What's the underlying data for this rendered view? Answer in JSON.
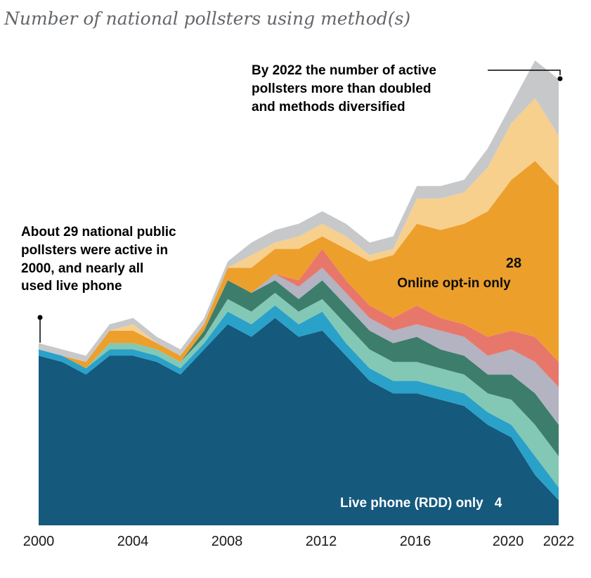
{
  "title": "Number of national pollsters using method(s)",
  "annotations": {
    "right": {
      "text": "By 2022 the number of active pollsters more than doubled and methods diversified",
      "lines": [
        "By 2022 the number of active",
        "pollsters more than doubled",
        "and methods diversified"
      ]
    },
    "left": {
      "text": "About 29 national public pollsters were active in 2000, and nearly all used live phone",
      "lines": [
        "About 29 national public",
        "pollsters were active in",
        "2000, and nearly all",
        "used live phone"
      ]
    }
  },
  "in_chart_labels": {
    "online_optin_value": "28",
    "online_optin_label": "Online opt-in only",
    "live_phone_label": "Live phone (RDD) only",
    "live_phone_value": "4"
  },
  "x_axis": {
    "ticks": [
      "2000",
      "2004",
      "2008",
      "2012",
      "2016",
      "2020",
      "2022"
    ]
  },
  "chart_data": {
    "type": "area",
    "stacked": true,
    "title": "Number of national pollsters using method(s)",
    "xlabel": "",
    "ylabel": "Number of national pollsters",
    "legend_position": "none",
    "grid": false,
    "ylim": [
      0,
      74
    ],
    "x": [
      2000,
      2001,
      2002,
      2003,
      2004,
      2005,
      2006,
      2007,
      2008,
      2009,
      2010,
      2011,
      2012,
      2013,
      2014,
      2015,
      2016,
      2017,
      2018,
      2019,
      2020,
      2021,
      2022
    ],
    "series": [
      {
        "name": "Live phone (RDD) only",
        "color": "#15597d",
        "values": [
          27,
          26,
          24,
          27,
          27,
          26,
          24,
          28,
          32,
          30,
          33,
          30,
          31,
          27,
          23,
          21,
          21,
          20,
          19,
          16,
          14,
          8,
          4
        ]
      },
      {
        "name": "unlabeled (light blue)",
        "color": "#2aa1c9",
        "values": [
          1,
          1,
          1,
          1,
          1,
          1,
          1,
          1,
          2,
          2,
          2,
          2,
          3,
          2,
          2,
          2,
          2,
          2,
          2,
          2,
          2,
          3,
          2
        ]
      },
      {
        "name": "unlabeled (seafoam)",
        "color": "#83c8b4",
        "values": [
          0,
          0,
          0,
          1,
          1,
          1,
          1,
          1,
          2,
          2,
          2,
          2,
          2,
          3,
          3,
          3,
          3,
          3,
          3,
          3,
          4,
          5,
          5
        ]
      },
      {
        "name": "unlabeled (dark green)",
        "color": "#3d7d6b",
        "values": [
          0,
          0,
          0,
          0,
          0,
          0,
          0,
          1,
          3,
          3,
          2,
          2,
          3,
          3,
          3,
          3,
          4,
          3,
          3,
          3,
          4,
          5,
          5
        ]
      },
      {
        "name": "unlabeled (gray lavender)",
        "color": "#b3b3c1",
        "values": [
          0,
          0,
          0,
          0,
          0,
          0,
          0,
          0,
          0,
          0,
          1,
          2,
          2,
          2,
          2,
          2,
          2,
          3,
          3,
          3,
          4,
          5,
          6
        ]
      },
      {
        "name": "unlabeled (salmon)",
        "color": "#e8776b",
        "values": [
          0,
          0,
          0,
          0,
          0,
          0,
          0,
          0,
          0,
          0,
          0,
          1,
          3,
          2,
          2,
          2,
          3,
          2,
          2,
          3,
          3,
          4,
          4
        ]
      },
      {
        "name": "Online opt-in only",
        "color": "#ed9f2c",
        "values": [
          0,
          0,
          1,
          2,
          2,
          1,
          1,
          1,
          2,
          4,
          4,
          5,
          2,
          5,
          7,
          10,
          13,
          14,
          16,
          20,
          24,
          28,
          28
        ]
      },
      {
        "name": "unlabeled (light orange)",
        "color": "#f7d08e",
        "values": [
          0,
          0,
          0,
          0,
          1,
          0,
          0,
          0,
          0,
          2,
          1,
          2,
          2,
          2,
          1,
          1,
          4,
          5,
          5,
          7,
          9,
          10,
          8
        ]
      },
      {
        "name": "unlabeled (top gray)",
        "color": "#c7c8ca",
        "values": [
          1,
          1,
          1,
          1,
          1,
          1,
          1,
          1,
          1,
          2,
          2,
          2,
          2,
          2,
          2,
          2,
          2,
          2,
          2,
          3,
          3,
          6,
          9
        ]
      }
    ],
    "annotated_points": [
      {
        "x": 2000,
        "total": 29,
        "note": "About 29 national public pollsters were active in 2000, and nearly all used live phone"
      },
      {
        "x": 2022,
        "series": "Online opt-in only",
        "value": 28
      },
      {
        "x": 2022,
        "series": "Live phone (RDD) only",
        "value": 4
      }
    ]
  }
}
